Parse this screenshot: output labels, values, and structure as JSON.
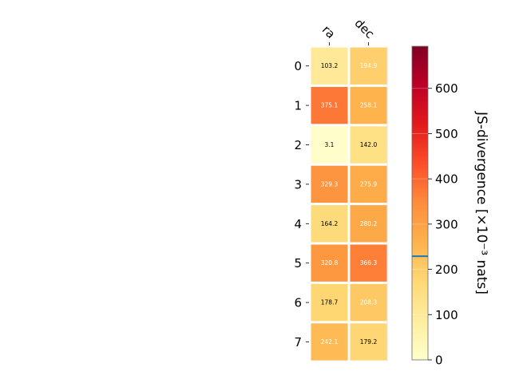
{
  "chart_data": {
    "type": "heatmap",
    "columns": [
      "ra",
      "dec"
    ],
    "rows": [
      "0",
      "1",
      "2",
      "3",
      "4",
      "5",
      "6",
      "7"
    ],
    "values": [
      [
        103.2,
        194.9
      ],
      [
        375.1,
        258.1
      ],
      [
        3.1,
        142.0
      ],
      [
        329.3,
        275.9
      ],
      [
        164.2,
        280.2
      ],
      [
        320.8,
        366.3
      ],
      [
        178.7,
        208.3
      ],
      [
        242.1,
        179.2
      ]
    ],
    "cell_labels": [
      [
        "103.2",
        "194.9"
      ],
      [
        "375.1",
        "258.1"
      ],
      [
        "3.1",
        "142.0"
      ],
      [
        "329.3",
        "275.9"
      ],
      [
        "164.2",
        "280.2"
      ],
      [
        "320.8",
        "366.3"
      ],
      [
        "178.7",
        "208.3"
      ],
      [
        "242.1",
        "179.2"
      ]
    ],
    "colormap": "YlOrRd",
    "colorbar": {
      "label": "JS-divergence [×10⁻³ nats]",
      "range": [
        0,
        693
      ],
      "ticks": [
        0,
        100,
        200,
        300,
        400,
        500,
        600
      ],
      "tick_labels": [
        "0",
        "100",
        "200",
        "300",
        "400",
        "500",
        "600"
      ],
      "marker_value": 229,
      "marker_color": "#1f77b4"
    },
    "grid": false
  }
}
